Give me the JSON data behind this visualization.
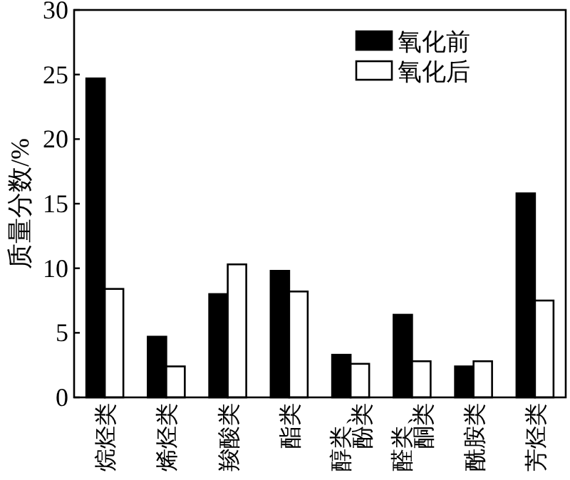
{
  "chart_data": {
    "type": "bar",
    "ylabel": "质量分数/%",
    "categories": [
      "烷烃类",
      "烯烃类",
      "羧酸类",
      "酯类",
      "醇类、酚类",
      "醛类、酮类",
      "酰胺类",
      "芳烃类"
    ],
    "series": [
      {
        "name": "氧化前",
        "color": "#000000",
        "values": [
          24.7,
          4.7,
          8.0,
          9.8,
          3.3,
          6.4,
          2.4,
          15.8
        ]
      },
      {
        "name": "氧化后",
        "color": "#ffffff",
        "values": [
          8.4,
          2.4,
          10.3,
          8.2,
          2.6,
          2.8,
          2.8,
          7.5
        ]
      }
    ],
    "ylim": [
      0,
      30
    ],
    "yticks": [
      0,
      5,
      10,
      15,
      20,
      25,
      30
    ],
    "legend": "top right",
    "grid": false
  }
}
